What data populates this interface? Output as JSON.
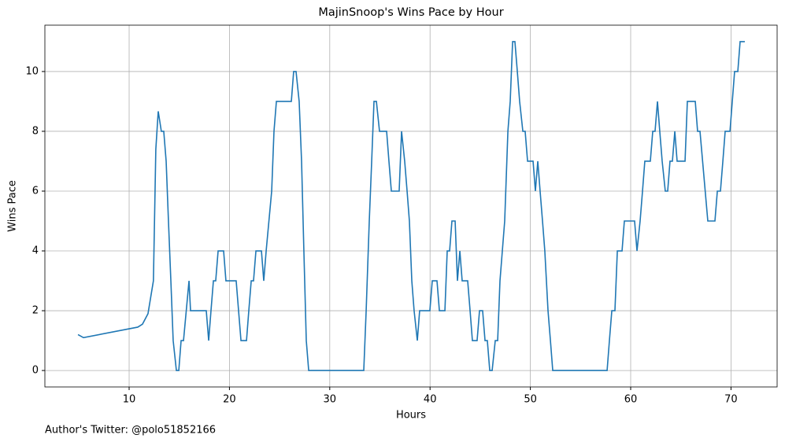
{
  "chart_data": {
    "type": "line",
    "title": "MajinSnoop's Wins Pace by Hour",
    "x_label": "Hours",
    "y_label": "Wins Pace",
    "annotation": "Author's Twitter: @polo51852166",
    "color": "#1f77b4",
    "grid": true,
    "xlim": [
      1.6,
      74.6
    ],
    "ylim": [
      -0.55,
      11.55
    ],
    "xticks": [
      10,
      20,
      30,
      40,
      50,
      60,
      70
    ],
    "yticks": [
      0,
      2,
      4,
      6,
      8,
      10
    ],
    "x": [
      4.9,
      5.45,
      10.86,
      11.33,
      11.88,
      12.42,
      12.66,
      12.9,
      13.21,
      13.45,
      13.69,
      13.92,
      14.16,
      14.39,
      14.71,
      14.95,
      15.18,
      15.42,
      15.97,
      16.12,
      17.14,
      17.69,
      17.93,
      18.16,
      18.4,
      18.63,
      18.87,
      19.42,
      19.65,
      20.44,
      20.67,
      20.91,
      21.15,
      21.7,
      21.93,
      22.17,
      22.4,
      22.64,
      23.19,
      23.42,
      23.66,
      24.21,
      24.44,
      24.68,
      26.17,
      26.4,
      26.64,
      26.95,
      27.19,
      27.42,
      27.66,
      27.9,
      33.39,
      33.63,
      33.94,
      34.18,
      34.41,
      34.65,
      34.96,
      35.67,
      35.9,
      36.14,
      36.92,
      37.16,
      37.47,
      37.71,
      37.94,
      38.18,
      38.41,
      38.73,
      38.96,
      39.98,
      40.22,
      40.69,
      40.93,
      41.48,
      41.71,
      41.95,
      42.18,
      42.5,
      42.73,
      42.97,
      43.2,
      43.75,
      43.99,
      44.22,
      44.69,
      44.93,
      45.24,
      45.48,
      45.71,
      45.95,
      46.19,
      46.5,
      46.74,
      46.97,
      47.44,
      47.76,
      47.99,
      48.23,
      48.46,
      48.7,
      48.93,
      49.25,
      49.48,
      49.72,
      50.27,
      50.5,
      50.74,
      50.97,
      51.21,
      51.44,
      51.76,
      52.0,
      52.23,
      57.65,
      57.88,
      58.12,
      58.43,
      58.67,
      59.14,
      59.37,
      60.39,
      60.63,
      60.94,
      61.18,
      61.41,
      61.96,
      62.2,
      62.43,
      62.67,
      62.9,
      63.14,
      63.45,
      63.69,
      63.92,
      64.16,
      64.4,
      64.63,
      65.42,
      65.65,
      66.44,
      66.67,
      66.91,
      67.69,
      68.4,
      68.64,
      68.95,
      69.19,
      69.42,
      69.9,
      70.13,
      70.36,
      70.68,
      70.91,
      71.38
    ],
    "values": [
      1.2,
      1.1,
      1.45,
      1.55,
      1.9,
      3,
      7.4,
      8.67,
      8,
      8,
      7,
      5,
      3,
      1,
      0,
      0,
      1,
      1,
      3,
      2,
      2,
      2,
      1,
      2,
      3,
      3,
      4,
      4,
      3,
      3,
      3,
      2,
      1,
      1,
      2,
      3,
      3,
      4,
      4,
      3,
      4,
      6,
      8,
      9,
      9,
      10,
      10,
      9,
      7,
      4,
      1,
      0,
      0,
      2,
      5,
      7,
      9,
      9,
      8,
      8,
      7,
      6,
      6,
      8,
      7,
      6,
      5,
      3,
      2,
      1,
      2,
      2,
      3,
      3,
      2,
      2,
      4,
      4,
      5,
      5,
      3,
      4,
      3,
      3,
      2,
      1,
      1,
      2,
      2,
      1,
      1,
      0,
      0,
      1,
      1,
      3,
      5,
      8,
      9,
      11,
      11,
      10,
      9,
      8,
      8,
      7,
      7,
      6,
      7,
      6,
      5,
      4,
      2,
      1,
      0,
      0,
      1,
      2,
      2,
      4,
      4,
      5,
      5,
      4,
      5,
      6,
      7,
      7,
      8,
      8,
      9,
      8,
      7,
      6,
      6,
      7,
      7,
      8,
      7,
      7,
      9,
      9,
      8,
      8,
      5,
      5,
      6,
      6,
      7,
      8,
      8,
      9,
      10,
      10,
      11,
      11
    ]
  }
}
